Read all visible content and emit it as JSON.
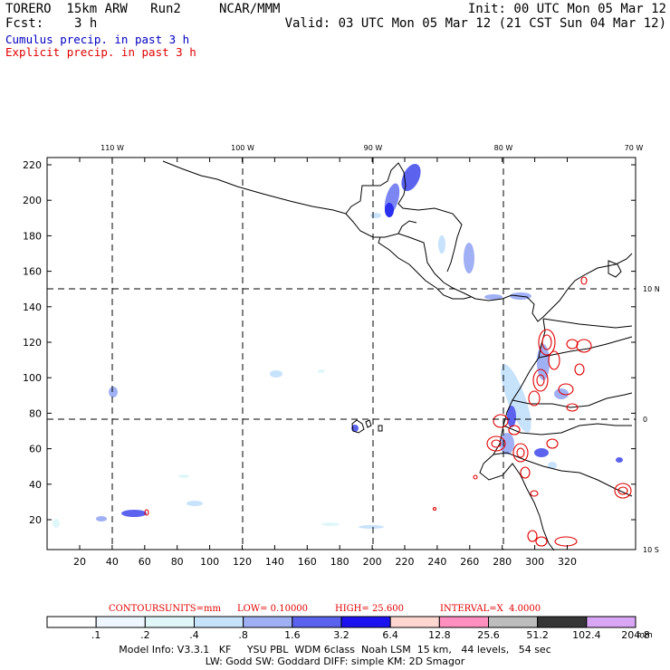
{
  "header": {
    "model": "TORERO  15km ARW   Run2",
    "org": "NCAR/MMM",
    "init": "Init: 00 UTC Mon 05 Mar 12",
    "fcst_label": "Fcst:",
    "fcst_value": "3 h",
    "valid": "Valid: 03 UTC Mon 05 Mar 12 (21 CST Sun 04 Mar 12)",
    "cumulus": "Cumulus precip. in past 3 h",
    "explicit": "Explicit precip. in past 3 h"
  },
  "colors": {
    "cumulus_text": "#0000c0",
    "explicit_text": "#e00000",
    "contour": "#e00000",
    "coast": "#000000"
  },
  "map": {
    "lon_labels": [
      "110 W",
      "100 W",
      "90 W",
      "80 W",
      "70 W"
    ],
    "lat_labels": [
      "10 N",
      "0",
      "10 S"
    ],
    "y_ticks": [
      "220",
      "200",
      "180",
      "160",
      "140",
      "120",
      "100",
      "80",
      "60",
      "40",
      "20"
    ],
    "x_ticks": [
      "20",
      "40",
      "60",
      "80",
      "100",
      "120",
      "140",
      "160",
      "180",
      "200",
      "220",
      "240",
      "260",
      "280",
      "300",
      "320"
    ]
  },
  "contours_info": {
    "contours_label": "CONTOURS:",
    "units": "UNITS=mm",
    "low": "LOW= 0.10000",
    "high": "HIGH= 25.600",
    "interval": "INTERVAL=X  4.0000"
  },
  "legend": {
    "unit": "mm",
    "labels": [
      ".1",
      ".2",
      ".4",
      ".8",
      "1.6",
      "3.2",
      "6.4",
      "12.8",
      "25.6",
      "51.2",
      "102.4",
      "204.8"
    ],
    "colors": [
      "#ffffff",
      "#eef6ff",
      "#e0f7fa",
      "#c7e2fb",
      "#9fb0f5",
      "#5b63ee",
      "#1c12f0",
      "#ffd7d0",
      "#ff8fbf",
      "#bdbdbd",
      "#363636",
      "#d9a5f5"
    ]
  },
  "model_info": {
    "line1": "Model Info: V3.3.1   KF     YSU PBL  WDM 6class  Noah LSM  15 km,   44 levels,   54 sec",
    "line2": "LW: Godd SW: Goddard DIFF: simple KM: 2D Smagor"
  }
}
